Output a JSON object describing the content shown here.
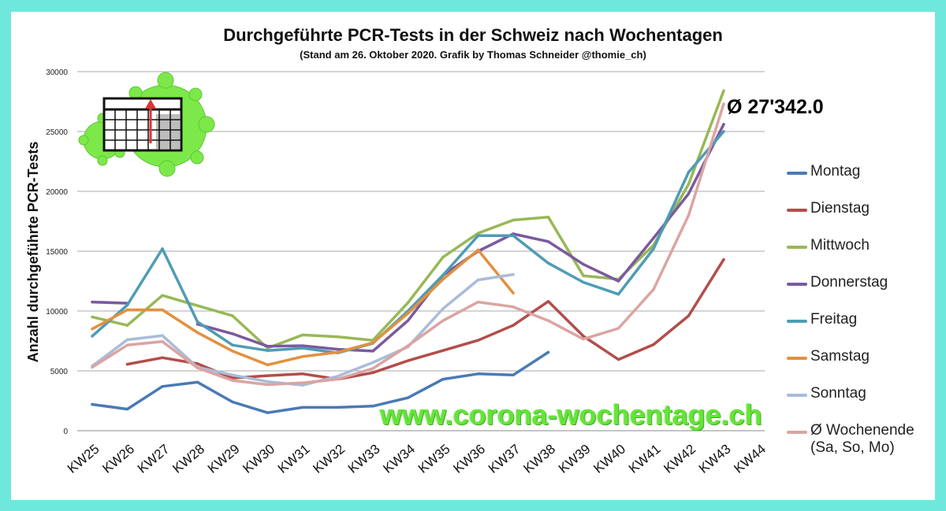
{
  "header": {
    "title": "Durchgeführte PCR-Tests in der Schweiz nach Wochentagen",
    "subtitle": "(Stand am 26. Oktober 2020. Grafik by Thomas Schneider @thomie_ch)"
  },
  "annotations": {
    "average": "Ø 27'342.0",
    "url": "www.corona-wochentage.ch"
  },
  "colors": {
    "background": "#6ee8dc",
    "card": "#ffffff",
    "grid": "#a9a9a9"
  },
  "chart_data": {
    "type": "line",
    "title": "Durchgeführte PCR-Tests in der Schweiz nach Wochentagen",
    "subtitle": "(Stand am 26. Oktober 2020. Grafik by Thomas Schneider @thomie_ch)",
    "xlabel": "",
    "ylabel": "Anzahl durchgeführte PCR-Tests",
    "ylim": [
      0,
      30000
    ],
    "yticks": [
      0,
      5000,
      10000,
      15000,
      20000,
      25000,
      30000
    ],
    "grid": true,
    "legend_position": "right",
    "categories": [
      "KW25",
      "KW26",
      "KW27",
      "KW28",
      "KW29",
      "KW30",
      "KW31",
      "KW32",
      "KW33",
      "KW34",
      "KW35",
      "KW36",
      "KW37",
      "KW38",
      "KW39",
      "KW40",
      "KW41",
      "KW42",
      "KW43",
      "KW44"
    ],
    "series": [
      {
        "name": "Montag",
        "color": "#4a7ab5",
        "values": [
          2200,
          1800,
          3700,
          4050,
          2400,
          1500,
          1950,
          1950,
          2050,
          2750,
          4300,
          4750,
          4650,
          6550,
          null,
          null,
          null,
          null,
          null,
          null
        ]
      },
      {
        "name": "Dienstag",
        "color": "#b24e4a",
        "values": [
          null,
          5550,
          6100,
          5600,
          4400,
          4600,
          4750,
          4300,
          4850,
          5850,
          6700,
          7550,
          8800,
          10800,
          7900,
          5950,
          7200,
          9600,
          14300,
          null
        ]
      },
      {
        "name": "Mittwoch",
        "color": "#98b856",
        "values": [
          9500,
          8800,
          11300,
          10450,
          9600,
          6900,
          8000,
          7850,
          7550,
          10700,
          14500,
          16500,
          17600,
          17850,
          12950,
          12650,
          15500,
          20600,
          28400,
          null
        ]
      },
      {
        "name": "Donnerstag",
        "color": "#7a5a9e",
        "values": [
          10750,
          10650,
          null,
          8900,
          8100,
          7050,
          7100,
          6800,
          6650,
          9200,
          13000,
          15000,
          16450,
          15800,
          13900,
          12500,
          16100,
          19800,
          25600,
          null
        ]
      },
      {
        "name": "Freitag",
        "color": "#4f9cb5",
        "values": [
          7900,
          10500,
          15200,
          9100,
          7150,
          6700,
          6900,
          6500,
          7300,
          10000,
          13000,
          16300,
          16300,
          14000,
          12400,
          11400,
          15200,
          21600,
          25000,
          null
        ]
      },
      {
        "name": "Samstag",
        "color": "#e2913e",
        "values": [
          8500,
          10100,
          10100,
          8200,
          6650,
          5500,
          6200,
          6550,
          7350,
          9800,
          12650,
          15100,
          11500,
          null,
          null,
          null,
          null,
          null,
          null,
          null
        ]
      },
      {
        "name": "Sonntag",
        "color": "#a9bcd9",
        "values": [
          5400,
          7600,
          7950,
          5300,
          4650,
          4100,
          3800,
          4550,
          5700,
          7000,
          10200,
          12600,
          13050,
          null,
          null,
          null,
          null,
          null,
          null,
          null
        ]
      },
      {
        "name": "Ø Wochenende (Sa, So, Mo)",
        "color": "#dba4a2",
        "values": [
          5300,
          7150,
          7450,
          5250,
          4200,
          3850,
          4000,
          4300,
          5200,
          7100,
          9200,
          10750,
          10350,
          9200,
          7650,
          8550,
          11800,
          18000,
          27300,
          null
        ]
      }
    ]
  }
}
